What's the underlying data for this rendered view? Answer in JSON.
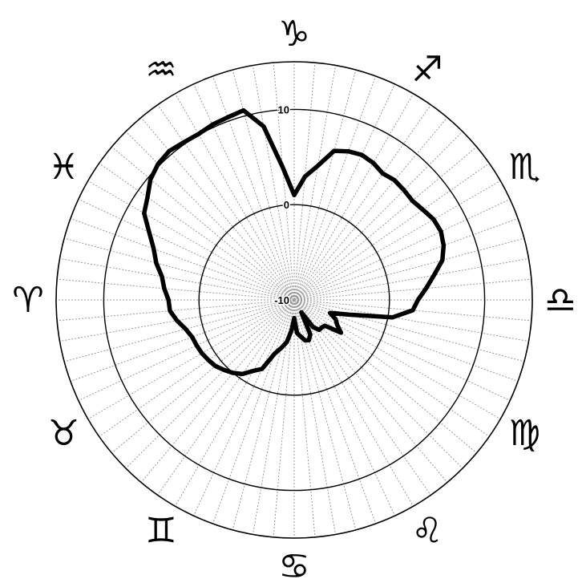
{
  "chart_data": {
    "type": "line",
    "projection": "polar",
    "title": "",
    "grid": true,
    "radial_axis": {
      "range": [
        -10,
        15
      ],
      "ticks": [
        -10,
        0,
        10
      ],
      "tick_labels": [
        "-10",
        "0",
        "10"
      ]
    },
    "angular_axis": {
      "labels": [
        "♑",
        "♐",
        "♏",
        "♎",
        "♍",
        "♌",
        "♋",
        "♊",
        "♉",
        "♈",
        "♓",
        "♒"
      ],
      "direction": "clockwise",
      "start": "top",
      "spoke_count": 72
    },
    "series": [
      {
        "angles_deg": [
          0,
          5,
          10,
          15,
          20,
          25,
          30,
          35,
          40,
          45,
          50,
          55,
          60,
          65,
          70,
          75,
          80,
          85,
          90,
          95,
          100,
          105,
          110,
          115,
          120,
          125,
          130,
          135,
          140,
          145,
          150,
          155,
          160,
          165,
          170,
          175,
          180,
          185,
          190,
          195,
          200,
          205,
          210,
          215,
          220,
          225,
          230,
          235,
          240,
          245,
          250,
          255,
          260,
          265,
          270,
          275,
          280,
          285,
          290,
          295,
          300,
          305,
          310,
          315,
          320,
          325,
          330,
          335,
          340,
          345,
          350,
          355
        ],
        "values": [
          1,
          3,
          4.3,
          6.2,
          6.6,
          6.8,
          6.6,
          6.2,
          6.4,
          6.3,
          6.2,
          6.5,
          6.9,
          7.0,
          6.7,
          6.1,
          4.9,
          3.9,
          3.0,
          2.5,
          0.5,
          -4.0,
          -6.0,
          -5.2,
          -4.8,
          -4.0,
          -5.8,
          -5.9,
          -5.9,
          -6.5,
          -8.5,
          -6.0,
          -5.5,
          -5.6,
          -6.1,
          -6.5,
          -8.1,
          -6.8,
          -5.5,
          -4.8,
          -4.0,
          -2.0,
          -1.4,
          -0.5,
          0.0,
          0.4,
          0.8,
          1.0,
          1.2,
          1.3,
          1.4,
          1.8,
          2.5,
          3.1,
          3.2,
          3.7,
          4.1,
          5.0,
          5.7,
          6.8,
          8.2,
          8.8,
          9.7,
          10.2,
          10.4,
          10.2,
          10.1,
          10.3,
          10.4,
          10.6,
          8.5,
          4.0
        ]
      }
    ]
  }
}
